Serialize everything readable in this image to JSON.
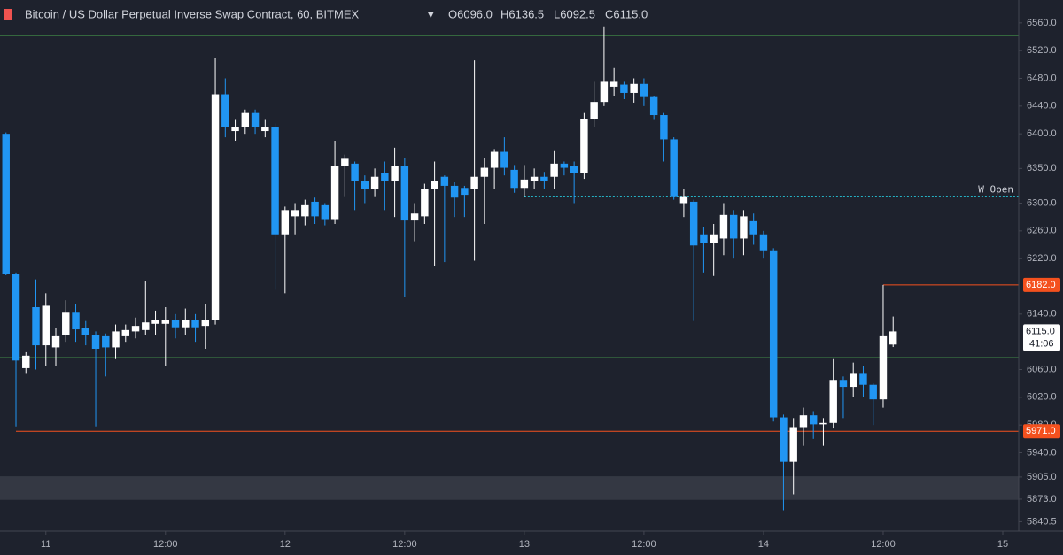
{
  "chart_data": {
    "type": "candlestick",
    "title": "Bitcoin / US Dollar Perpetual Inverse Swap Contract, 60, BITMEX",
    "legend": {
      "open": "O6096.0",
      "high": "H6136.5",
      "low": "L6092.5",
      "close": "C6115.0"
    },
    "x": [
      -4,
      -3,
      -2,
      -1,
      0,
      1,
      2,
      3,
      4,
      5,
      6,
      7,
      8,
      9,
      10,
      11,
      12,
      13,
      14,
      15,
      16,
      17,
      18,
      19,
      20,
      21,
      22,
      23,
      24,
      25,
      26,
      27,
      28,
      29,
      30,
      31,
      32,
      33,
      34,
      35,
      36,
      37,
      38,
      39,
      40,
      41,
      42,
      43,
      44,
      45,
      46,
      47,
      48,
      49,
      50,
      51,
      52,
      53,
      54,
      55,
      56,
      57,
      58,
      59,
      60,
      61,
      62,
      63,
      64,
      65,
      66,
      67,
      68,
      69,
      70,
      71,
      72,
      73,
      74,
      75,
      76,
      77,
      78,
      79,
      80,
      81,
      82,
      83,
      84,
      85
    ],
    "open": [
      6400,
      6198,
      6062,
      6150,
      6095,
      6092,
      6110,
      6142,
      6120,
      6110,
      6108,
      6092,
      6108,
      6115,
      6117,
      6126,
      6126,
      6131,
      6121,
      6131,
      6123,
      6131,
      6457,
      6404,
      6410,
      6430,
      6404,
      6410,
      6255,
      6281,
      6281,
      6302,
      6297,
      6277,
      6353,
      6357,
      6332,
      6321,
      6343,
      6332,
      6353,
      6275,
      6281,
      6320,
      6338,
      6325,
      6322,
      6320,
      6338,
      6351,
      6374,
      6348,
      6322,
      6332,
      6338,
      6338,
      6357,
      6353,
      6344,
      6421,
      6446,
      6468,
      6471,
      6459,
      6472,
      6453,
      6427,
      6392,
      6300,
      6302,
      6255,
      6242,
      6249,
      6283,
      6249,
      6274,
      6255,
      6232,
      5991,
      5927,
      5977,
      5994,
      5981,
      5983,
      6045,
      6035,
      6055,
      6038,
      6017,
      6096
    ],
    "high": [
      6402,
      6200,
      6085,
      6190,
      6170,
      6120,
      6160,
      6155,
      6130,
      6115,
      6112,
      6125,
      6125,
      6135,
      6187,
      6145,
      6150,
      6140,
      6148,
      6140,
      6155,
      6510,
      6480,
      6420,
      6435,
      6435,
      6420,
      6415,
      6295,
      6300,
      6305,
      6308,
      6300,
      6390,
      6370,
      6360,
      6340,
      6350,
      6360,
      6380,
      6365,
      6300,
      6328,
      6360,
      6340,
      6330,
      6325,
      6506,
      6365,
      6378,
      6395,
      6355,
      6355,
      6350,
      6345,
      6375,
      6360,
      6360,
      6430,
      6475,
      6555,
      6495,
      6475,
      6480,
      6480,
      6455,
      6430,
      6395,
      6320,
      6305,
      6265,
      6270,
      6300,
      6290,
      6290,
      6285,
      6260,
      6235,
      5995,
      5990,
      6005,
      6000,
      5990,
      6075,
      6050,
      6070,
      6065,
      6040,
      6182,
      6136.5
    ],
    "low": [
      6196,
      5978,
      6055,
      6060,
      6065,
      6065,
      6100,
      6100,
      6095,
      5978,
      6050,
      6075,
      6100,
      6105,
      6110,
      6110,
      6065,
      6105,
      6110,
      6100,
      6090,
      6125,
      6395,
      6390,
      6400,
      6400,
      6395,
      6175,
      6170,
      6255,
      6268,
      6270,
      6268,
      6270,
      6310,
      6290,
      6300,
      6310,
      6290,
      6280,
      6165,
      6245,
      6270,
      6210,
      6215,
      6280,
      6280,
      6217,
      6270,
      6320,
      6340,
      6315,
      6310,
      6320,
      6320,
      6320,
      6340,
      6300,
      6335,
      6410,
      6440,
      6455,
      6450,
      6445,
      6440,
      6420,
      6360,
      6305,
      6280,
      6130,
      6200,
      6195,
      6225,
      6220,
      6225,
      6240,
      6220,
      5985,
      5857,
      5880,
      5950,
      5960,
      5950,
      5975,
      5990,
      6020,
      6020,
      5980,
      6005,
      6092.5
    ],
    "close": [
      6198,
      6073,
      6080,
      6095,
      6152,
      6108,
      6142,
      6118,
      6110,
      6090,
      6092,
      6115,
      6117,
      6123,
      6128,
      6131,
      6131,
      6121,
      6131,
      6121,
      6131,
      6457,
      6410,
      6410,
      6430,
      6410,
      6410,
      6255,
      6290,
      6290,
      6297,
      6281,
      6277,
      6353,
      6364,
      6332,
      6321,
      6338,
      6332,
      6353,
      6275,
      6285,
      6320,
      6332,
      6325,
      6308,
      6312,
      6338,
      6351,
      6374,
      6351,
      6322,
      6334,
      6338,
      6332,
      6357,
      6351,
      6344,
      6421,
      6446,
      6475,
      6475,
      6459,
      6472,
      6453,
      6427,
      6392,
      6310,
      6310,
      6239,
      6242,
      6255,
      6283,
      6249,
      6281,
      6255,
      6232,
      5991,
      5927,
      5977,
      5994,
      5981,
      5983,
      6045,
      6035,
      6055,
      6038,
      6017,
      6108,
      6115
    ],
    "up_color": "#ffffff",
    "down_color": "#2196f3",
    "xlim": [
      -4.6,
      97.6
    ],
    "xticks": [
      {
        "value": 0,
        "label": "11"
      },
      {
        "value": 12,
        "label": "12:00"
      },
      {
        "value": 24,
        "label": "12"
      },
      {
        "value": 36,
        "label": "12:00"
      },
      {
        "value": 48,
        "label": "13"
      },
      {
        "value": 60,
        "label": "12:00"
      },
      {
        "value": 72,
        "label": "14"
      },
      {
        "value": 84,
        "label": "12:00"
      },
      {
        "value": 96,
        "label": "15"
      }
    ],
    "ylim": [
      5827,
      6593
    ],
    "yticks": [
      {
        "value": 6560,
        "label": "6560.0"
      },
      {
        "value": 6520,
        "label": "6520.0"
      },
      {
        "value": 6480,
        "label": "6480.0"
      },
      {
        "value": 6440,
        "label": "6440.0"
      },
      {
        "value": 6400,
        "label": "6400.0"
      },
      {
        "value": 6350,
        "label": "6350.0"
      },
      {
        "value": 6300,
        "label": "6300.0"
      },
      {
        "value": 6260,
        "label": "6260.0"
      },
      {
        "value": 6220,
        "label": "6220.0"
      },
      {
        "value": 6140,
        "label": "6140.0"
      },
      {
        "value": 6060,
        "label": "6060.0"
      },
      {
        "value": 6020,
        "label": "6020.0"
      },
      {
        "value": 5980,
        "label": "5980.0"
      },
      {
        "value": 5940,
        "label": "5940.0"
      },
      {
        "value": 5905,
        "label": "5905.0"
      },
      {
        "value": 5873,
        "label": "5873.0"
      },
      {
        "value": 5840.5,
        "label": "5840.5"
      }
    ],
    "levels": [
      {
        "value": 6542,
        "color": "#4caf50"
      },
      {
        "value": 6077,
        "color": "#4caf50"
      },
      {
        "value": 6310,
        "color": "#26c6da",
        "from": 48,
        "dashed": true,
        "label": "W Open"
      },
      {
        "value": 6182,
        "color": "#f4511e",
        "from": 84,
        "label": "6182.0"
      },
      {
        "value": 5971,
        "color": "#f4511e",
        "from": -3,
        "label": "5971.0"
      }
    ],
    "zone": {
      "low": 5872,
      "high": 5906,
      "color": "#3a3e48"
    },
    "last_price": {
      "value": 6115,
      "label": "6115.0"
    },
    "countdown": "41:06"
  }
}
